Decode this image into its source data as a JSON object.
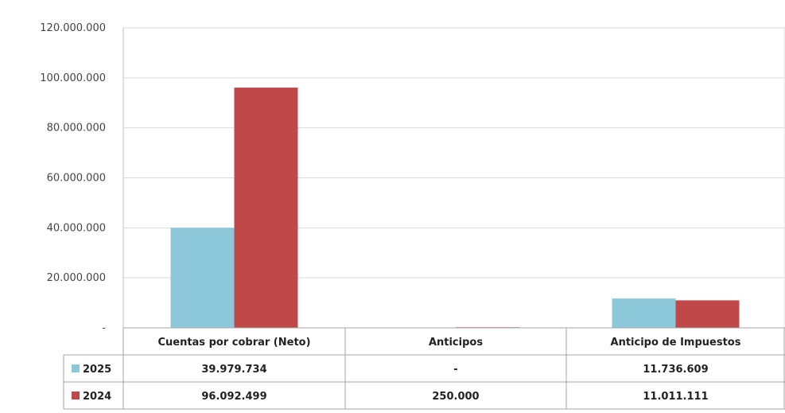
{
  "chart_data": {
    "type": "bar",
    "categories": [
      "Cuentas por cobrar (Neto)",
      "Anticipos",
      "Anticipo de Impuestos"
    ],
    "series": [
      {
        "name": "2025",
        "values": [
          39979734,
          0,
          11736609
        ],
        "labels": [
          "39.979.734",
          "-",
          "11.736.609"
        ],
        "color": "#8cc8da"
      },
      {
        "name": "2024",
        "values": [
          96092499,
          250000,
          11011111
        ],
        "labels": [
          "96.092.499",
          "250.000",
          "11.011.111"
        ],
        "color": "#c04848"
      }
    ],
    "yticks": [
      "-",
      "20.000.000",
      "40.000.000",
      "60.000.000",
      "80.000.000",
      "100.000.000",
      "120.000.000"
    ],
    "ylim": [
      0,
      120000000
    ],
    "grid": true,
    "legend": "data-table"
  }
}
